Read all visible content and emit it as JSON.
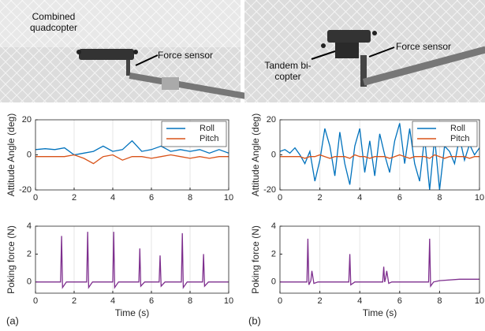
{
  "photos": [
    {
      "labels": [
        "Combined quadcopter",
        "Force sensor"
      ]
    },
    {
      "labels": [
        "Tandem bi-copter",
        "Force sensor"
      ]
    }
  ],
  "panel_labels": [
    "(a)",
    "(b)"
  ],
  "chart_data": [
    {
      "type": "line",
      "ylabel": "Attitude Angle (deg)",
      "legend": "upper right",
      "grid": true,
      "xlim": [
        0,
        10
      ],
      "xticks": [
        0,
        2,
        4,
        6,
        8,
        10
      ],
      "ylim": [
        -20,
        20
      ],
      "yticks": [
        -20,
        0,
        20
      ],
      "x": [
        0,
        0.5,
        1,
        1.5,
        2,
        2.5,
        3,
        3.5,
        4,
        4.5,
        5,
        5.5,
        6,
        6.5,
        7,
        7.5,
        8,
        8.5,
        9,
        9.5,
        10
      ],
      "series": [
        {
          "name": "Roll",
          "color": "#0072BD",
          "values": [
            3,
            3.5,
            3,
            4,
            0,
            1,
            2,
            5,
            2,
            3,
            8,
            2,
            3,
            5,
            2,
            3,
            2,
            3,
            1,
            3,
            1
          ]
        },
        {
          "name": "Pitch",
          "color": "#D95319",
          "values": [
            -1,
            -1,
            -1,
            -1,
            0,
            -2,
            -5,
            -1,
            0,
            -3,
            -1,
            -1,
            -2,
            -1,
            0,
            -1,
            -2,
            -1,
            -2,
            -1,
            -1
          ]
        }
      ]
    },
    {
      "type": "line",
      "ylabel": "Poking force (N)",
      "xlabel": "Time (s)",
      "grid": true,
      "xlim": [
        0,
        10
      ],
      "xticks": [
        0,
        2,
        4,
        6,
        8,
        10
      ],
      "ylim": [
        -0.8,
        4
      ],
      "yticks": [
        0,
        2,
        4
      ],
      "x": [
        0,
        1.3,
        1.35,
        1.4,
        1.6,
        2.65,
        2.7,
        2.75,
        2.95,
        4.0,
        4.05,
        4.1,
        4.3,
        5.35,
        5.4,
        5.45,
        5.65,
        6.4,
        6.45,
        6.5,
        6.7,
        7.55,
        7.6,
        7.65,
        7.85,
        8.65,
        8.7,
        8.75,
        8.95,
        10
      ],
      "series": [
        {
          "color": "#7E2F8E",
          "values": [
            0,
            0,
            3.3,
            -0.4,
            0,
            0,
            3.6,
            -0.4,
            0,
            0,
            3.6,
            -0.4,
            0,
            0,
            2.4,
            -0.3,
            0,
            0,
            1.9,
            -0.3,
            0,
            0,
            3.5,
            -0.4,
            0,
            0,
            2.0,
            -0.3,
            0,
            0
          ]
        }
      ]
    },
    {
      "type": "line",
      "ylabel": "Attitude Angle (deg)",
      "legend": "upper right",
      "grid": true,
      "xlim": [
        0,
        10
      ],
      "xticks": [
        0,
        2,
        4,
        6,
        8,
        10
      ],
      "ylim": [
        -20,
        20
      ],
      "yticks": [
        -20,
        0,
        20
      ],
      "x": [
        0,
        0.25,
        0.5,
        0.75,
        1,
        1.25,
        1.5,
        1.75,
        2,
        2.25,
        2.5,
        2.75,
        3,
        3.25,
        3.5,
        3.75,
        4,
        4.25,
        4.5,
        4.75,
        5,
        5.25,
        5.5,
        5.75,
        6,
        6.25,
        6.5,
        6.75,
        7,
        7.25,
        7.5,
        7.75,
        8,
        8.25,
        8.5,
        8.75,
        9,
        9.25,
        9.5,
        9.75,
        10
      ],
      "series": [
        {
          "name": "Roll",
          "color": "#0072BD",
          "values": [
            2,
            3,
            1,
            4,
            0,
            -5,
            2,
            -15,
            -3,
            15,
            5,
            -12,
            13,
            -5,
            -17,
            5,
            15,
            -10,
            8,
            -12,
            12,
            0,
            -10,
            8,
            18,
            -5,
            15,
            -5,
            -15,
            10,
            -20,
            10,
            -20,
            5,
            2,
            -5,
            10,
            -3,
            6,
            0,
            4
          ]
        },
        {
          "name": "Pitch",
          "color": "#D95319",
          "values": [
            -1,
            -1,
            -1,
            -1,
            -1,
            -2,
            -1,
            -1,
            0,
            -1,
            -2,
            -1,
            -1,
            -1,
            -2,
            0,
            -1,
            -1,
            -2,
            -1,
            -1,
            -1,
            -2,
            -1,
            0,
            -1,
            -2,
            -1,
            -1,
            -1,
            -2,
            0,
            -1,
            -2,
            -1,
            -1,
            -1,
            -1,
            -2,
            -1,
            -1
          ]
        }
      ]
    },
    {
      "type": "line",
      "ylabel": "Poking force (N)",
      "xlabel": "Time (s)",
      "grid": true,
      "xlim": [
        0,
        10
      ],
      "xticks": [
        0,
        2,
        4,
        6,
        8,
        10
      ],
      "ylim": [
        -0.8,
        4
      ],
      "yticks": [
        0,
        2,
        4
      ],
      "x": [
        0,
        1.35,
        1.4,
        1.45,
        1.55,
        1.6,
        1.7,
        1.9,
        3.45,
        3.5,
        3.55,
        3.75,
        5.15,
        5.2,
        5.25,
        5.3,
        5.35,
        5.45,
        5.6,
        7.45,
        7.5,
        7.55,
        7.7,
        8,
        9,
        10
      ],
      "series": [
        {
          "color": "#7E2F8E",
          "values": [
            0,
            0,
            3.1,
            -0.2,
            0.1,
            0.8,
            -0.1,
            0,
            0,
            2.0,
            -0.2,
            0,
            0,
            1.1,
            0,
            0.3,
            0.8,
            -0.1,
            0,
            0,
            3.1,
            -0.3,
            0,
            0.1,
            0.2,
            0.2
          ]
        }
      ]
    }
  ]
}
